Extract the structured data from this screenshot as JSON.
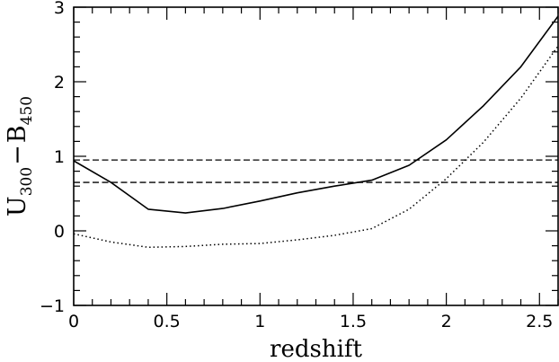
{
  "chart_data": {
    "type": "line",
    "title": "",
    "xlabel": "redshift",
    "ylabel": {
      "base1": "U",
      "sub1": "300",
      "op": "−",
      "base2": "B",
      "sub2": "450"
    },
    "xlim": [
      0,
      2.6
    ],
    "ylim": [
      -1,
      3
    ],
    "grid": false,
    "x_ticks": [
      {
        "value": 0,
        "label": "0"
      },
      {
        "value": 0.5,
        "label": "0.5"
      },
      {
        "value": 1,
        "label": "1"
      },
      {
        "value": 1.5,
        "label": "1.5"
      },
      {
        "value": 2,
        "label": "2"
      },
      {
        "value": 2.5,
        "label": "2.5"
      }
    ],
    "y_ticks": [
      {
        "value": -1,
        "label": "−1"
      },
      {
        "value": 0,
        "label": "0"
      },
      {
        "value": 1,
        "label": "1"
      },
      {
        "value": 2,
        "label": "2"
      },
      {
        "value": 3,
        "label": "3"
      }
    ],
    "series": [
      {
        "style": "solid",
        "x": [
          0,
          0.2,
          0.4,
          0.6,
          0.8,
          1.0,
          1.2,
          1.4,
          1.6,
          1.8,
          2.0,
          2.2,
          2.4,
          2.6
        ],
        "y": [
          0.94,
          0.65,
          0.29,
          0.24,
          0.3,
          0.4,
          0.51,
          0.6,
          0.68,
          0.88,
          1.22,
          1.68,
          2.2,
          2.88
        ]
      },
      {
        "style": "dotted",
        "x": [
          0,
          0.2,
          0.4,
          0.6,
          0.8,
          1.0,
          1.2,
          1.4,
          1.6,
          1.8,
          2.0,
          2.2,
          2.4,
          2.6
        ],
        "y": [
          -0.04,
          -0.15,
          -0.22,
          -0.21,
          -0.18,
          -0.17,
          -0.12,
          -0.06,
          0.03,
          0.29,
          0.7,
          1.19,
          1.78,
          2.48
        ]
      }
    ],
    "hlines": [
      {
        "y": 0.95,
        "style": "dashed"
      },
      {
        "y": 0.65,
        "style": "dashed"
      }
    ]
  }
}
